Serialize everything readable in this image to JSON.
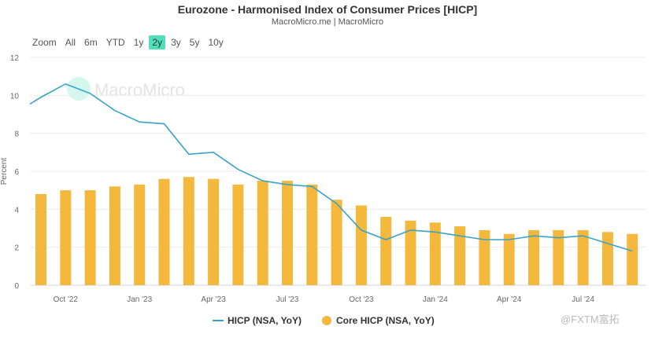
{
  "header": {
    "title": "Eurozone - Harmonised Index of Consumer Prices [HICP]",
    "subtitle": "MacroMicro.me | MacroMicro"
  },
  "range_selector": {
    "label": "Zoom",
    "buttons": [
      "All",
      "6m",
      "YTD",
      "1y",
      "2y",
      "3y",
      "5y",
      "10y"
    ],
    "active": "2y"
  },
  "watermark": "MacroMicro",
  "corner_watermark": "@FXTM富拓",
  "chart_data": {
    "type": "bar+line",
    "title": "Eurozone - Harmonised Index of Consumer Prices [HICP]",
    "ylabel": "Percent",
    "ylim": [
      0,
      12
    ],
    "yticks": [
      0,
      2,
      4,
      6,
      8,
      10,
      12
    ],
    "months": [
      "Aug '22",
      "Sep '22",
      "Oct '22",
      "Nov '22",
      "Dec '22",
      "Jan '23",
      "Feb '23",
      "Mar '23",
      "Apr '23",
      "May '23",
      "Jun '23",
      "Jul '23",
      "Aug '23",
      "Sep '23",
      "Oct '23",
      "Nov '23",
      "Dec '23",
      "Jan '24",
      "Feb '24",
      "Mar '24",
      "Apr '24",
      "May '24",
      "Jun '24",
      "Jul '24",
      "Aug '24",
      "Sep '24"
    ],
    "xtick_labels": [
      "Oct '22",
      "Jan '23",
      "Apr '23",
      "Jul '23",
      "Oct '23",
      "Jan '24",
      "Apr '24",
      "Jul '24"
    ],
    "series": [
      {
        "name": "HICP (NSA, YoY)",
        "type": "line",
        "color": "#3aa3c8",
        "values": [
          9.1,
          9.9,
          10.6,
          10.1,
          9.2,
          8.6,
          8.5,
          6.9,
          7.0,
          6.1,
          5.5,
          5.3,
          5.2,
          4.3,
          2.9,
          2.4,
          2.9,
          2.8,
          2.6,
          2.4,
          2.4,
          2.6,
          2.5,
          2.6,
          2.2,
          1.8
        ]
      },
      {
        "name": "Core HICP (NSA, YoY)",
        "type": "bar",
        "color": "#f4b83c",
        "values": [
          null,
          4.8,
          5.0,
          5.0,
          5.2,
          5.3,
          5.6,
          5.7,
          5.6,
          5.3,
          5.5,
          5.5,
          5.3,
          4.5,
          4.2,
          3.6,
          3.4,
          3.3,
          3.1,
          2.9,
          2.7,
          2.9,
          2.9,
          2.9,
          2.8,
          2.7
        ]
      }
    ],
    "legend": "bottom-center",
    "grid": true
  }
}
